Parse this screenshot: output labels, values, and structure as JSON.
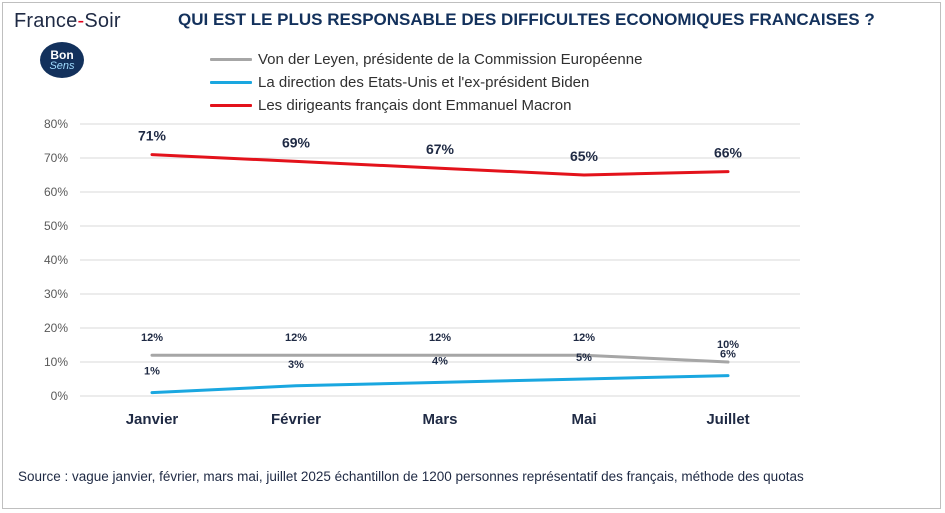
{
  "brand": {
    "name_part1": "France",
    "name_sep": "-",
    "name_part2": "Soir",
    "badge_line1": "Bon",
    "badge_line2": "Sens"
  },
  "source": "Source : vague janvier, février, mars  mai, juillet 2025 échantillon de 1200 personnes représentatif des français, méthode des quotas",
  "chart_data": {
    "type": "line",
    "title": "QUI EST LE PLUS RESPONSABLE DES DIFFICULTES ECONOMIQUES FRANCAISES ?",
    "xlabel": "",
    "ylabel": "",
    "categories": [
      "Janvier",
      "Février",
      "Mars",
      "Mai",
      "Juillet"
    ],
    "ylim": [
      0,
      80
    ],
    "yticks": [
      "0%",
      "10%",
      "20%",
      "30%",
      "40%",
      "50%",
      "60%",
      "70%",
      "80%"
    ],
    "grid": true,
    "legend_position": "top",
    "series": [
      {
        "name": "Von der Leyen, présidente de la Commission Européenne",
        "color": "#a6a6a6",
        "values": [
          12,
          12,
          12,
          12,
          10
        ],
        "labels": [
          "12%",
          "12%",
          "12%",
          "12%",
          "10%"
        ]
      },
      {
        "name": "La direction des Etats-Unis et l'ex-président Biden",
        "color": "#1aa7e0",
        "values": [
          1,
          3,
          4,
          5,
          6
        ],
        "labels": [
          "1%",
          "3%",
          "4%",
          "5%",
          "6%"
        ]
      },
      {
        "name": "Les dirigeants français dont Emmanuel Macron",
        "color": "#e3121b",
        "values": [
          71,
          69,
          67,
          65,
          66
        ],
        "labels": [
          "71%",
          "69%",
          "67%",
          "65%",
          "66%"
        ]
      }
    ]
  }
}
